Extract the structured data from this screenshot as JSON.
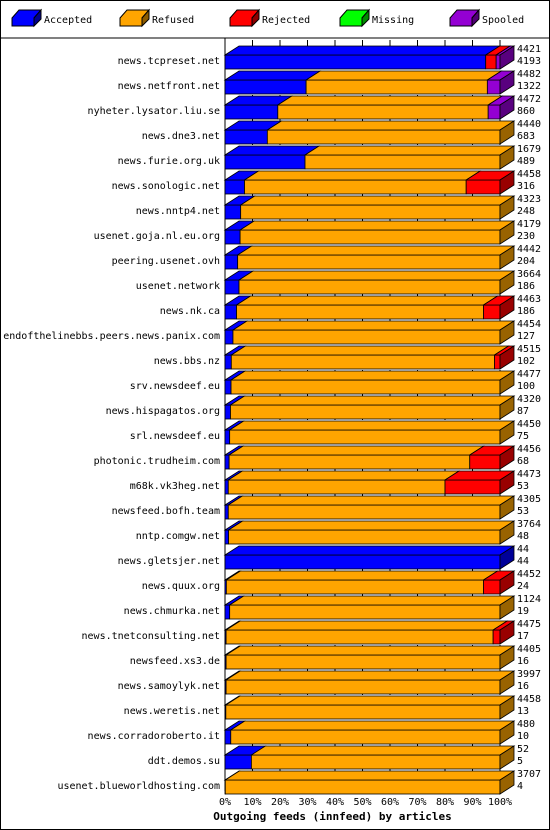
{
  "chart_data": {
    "type": "bar",
    "orientation": "horizontal",
    "stacked": true,
    "title": "Outgoing feeds (innfeed) by articles",
    "xlim": [
      0,
      100
    ],
    "x_unit": "%",
    "x_ticks": [
      "0%",
      "10%",
      "20%",
      "30%",
      "40%",
      "50%",
      "60%",
      "70%",
      "80%",
      "90%",
      "100%"
    ],
    "grid": "vertical dashed",
    "legend_position": "top",
    "legend": [
      {
        "name": "Accepted",
        "color": "#0000ff"
      },
      {
        "name": "Refused",
        "color": "#ffa500"
      },
      {
        "name": "Rejected",
        "color": "#ff0000"
      },
      {
        "name": "Missing",
        "color": "#00ff00"
      },
      {
        "name": "Spooled",
        "color": "#9400d3"
      }
    ],
    "rows": [
      {
        "label": "news.tcpreset.net",
        "total": "4421",
        "accepted": "4193",
        "pct": [
          94.8,
          0,
          3.8,
          0,
          1.4
        ]
      },
      {
        "label": "news.netfront.net",
        "total": "4482",
        "accepted": "1322",
        "pct": [
          29.5,
          65.9,
          0,
          0,
          4.6
        ]
      },
      {
        "label": "nyheter.lysator.liu.se",
        "total": "4472",
        "accepted": "860",
        "pct": [
          19.2,
          76.5,
          0,
          0,
          4.3
        ]
      },
      {
        "label": "news.dne3.net",
        "total": "4440",
        "accepted": "683",
        "pct": [
          15.4,
          84.6,
          0,
          0,
          0
        ]
      },
      {
        "label": "news.furie.org.uk",
        "total": "1679",
        "accepted": "489",
        "pct": [
          29.1,
          70.9,
          0,
          0,
          0
        ]
      },
      {
        "label": "news.sonologic.net",
        "total": "4458",
        "accepted": "316",
        "pct": [
          7.1,
          80.6,
          12.3,
          0,
          0
        ]
      },
      {
        "label": "news.nntp4.net",
        "total": "4323",
        "accepted": "248",
        "pct": [
          5.7,
          94.3,
          0,
          0,
          0
        ]
      },
      {
        "label": "usenet.goja.nl.eu.org",
        "total": "4179",
        "accepted": "230",
        "pct": [
          5.5,
          94.5,
          0,
          0,
          0
        ]
      },
      {
        "label": "peering.usenet.ovh",
        "total": "4442",
        "accepted": "204",
        "pct": [
          4.6,
          95.4,
          0,
          0,
          0
        ]
      },
      {
        "label": "usenet.network",
        "total": "3664",
        "accepted": "186",
        "pct": [
          5.1,
          94.9,
          0,
          0,
          0
        ]
      },
      {
        "label": "news.nk.ca",
        "total": "4463",
        "accepted": "186",
        "pct": [
          4.2,
          89.8,
          6.0,
          0,
          0
        ]
      },
      {
        "label": "endofthelinebbs.peers.news.panix.com",
        "total": "4454",
        "accepted": "127",
        "pct": [
          2.9,
          97.1,
          0,
          0,
          0
        ]
      },
      {
        "label": "news.bbs.nz",
        "total": "4515",
        "accepted": "102",
        "pct": [
          2.3,
          95.7,
          2.0,
          0,
          0
        ]
      },
      {
        "label": "srv.newsdeef.eu",
        "total": "4477",
        "accepted": "100",
        "pct": [
          2.2,
          97.8,
          0,
          0,
          0
        ]
      },
      {
        "label": "news.hispagatos.org",
        "total": "4320",
        "accepted": "87",
        "pct": [
          2.0,
          98.0,
          0,
          0,
          0
        ]
      },
      {
        "label": "srl.newsdeef.eu",
        "total": "4450",
        "accepted": "75",
        "pct": [
          1.7,
          98.3,
          0,
          0,
          0
        ]
      },
      {
        "label": "photonic.trudheim.com",
        "total": "4456",
        "accepted": "68",
        "pct": [
          1.5,
          87.5,
          11.0,
          0,
          0
        ]
      },
      {
        "label": "m68k.vk3heg.net",
        "total": "4473",
        "accepted": "53",
        "pct": [
          1.2,
          78.8,
          20.0,
          0,
          0
        ]
      },
      {
        "label": "newsfeed.bofh.team",
        "total": "4305",
        "accepted": "53",
        "pct": [
          1.2,
          98.8,
          0,
          0,
          0
        ]
      },
      {
        "label": "nntp.comgw.net",
        "total": "3764",
        "accepted": "48",
        "pct": [
          1.3,
          98.7,
          0,
          0,
          0
        ]
      },
      {
        "label": "news.gletsjer.net",
        "total": "44",
        "accepted": "44",
        "pct": [
          100,
          0,
          0,
          0,
          0
        ]
      },
      {
        "label": "news.quux.org",
        "total": "4452",
        "accepted": "24",
        "pct": [
          0.5,
          93.5,
          6.0,
          0,
          0
        ]
      },
      {
        "label": "news.chmurka.net",
        "total": "1124",
        "accepted": "19",
        "pct": [
          1.7,
          98.3,
          0,
          0,
          0
        ]
      },
      {
        "label": "news.tnetconsulting.net",
        "total": "4475",
        "accepted": "17",
        "pct": [
          0.4,
          97.1,
          2.5,
          0,
          0
        ]
      },
      {
        "label": "newsfeed.xs3.de",
        "total": "4405",
        "accepted": "16",
        "pct": [
          0.4,
          99.6,
          0,
          0,
          0
        ]
      },
      {
        "label": "news.samoylyk.net",
        "total": "3997",
        "accepted": "16",
        "pct": [
          0.4,
          99.6,
          0,
          0,
          0
        ]
      },
      {
        "label": "news.weretis.net",
        "total": "4458",
        "accepted": "13",
        "pct": [
          0.3,
          99.7,
          0,
          0,
          0
        ]
      },
      {
        "label": "news.corradoroberto.it",
        "total": "480",
        "accepted": "10",
        "pct": [
          2.1,
          97.9,
          0,
          0,
          0
        ]
      },
      {
        "label": "ddt.demos.su",
        "total": "52",
        "accepted": "5",
        "pct": [
          9.6,
          90.4,
          0,
          0,
          0
        ]
      },
      {
        "label": "usenet.blueworldhosting.com",
        "total": "3707",
        "accepted": "4",
        "pct": [
          0.1,
          99.9,
          0,
          0,
          0
        ]
      }
    ]
  }
}
